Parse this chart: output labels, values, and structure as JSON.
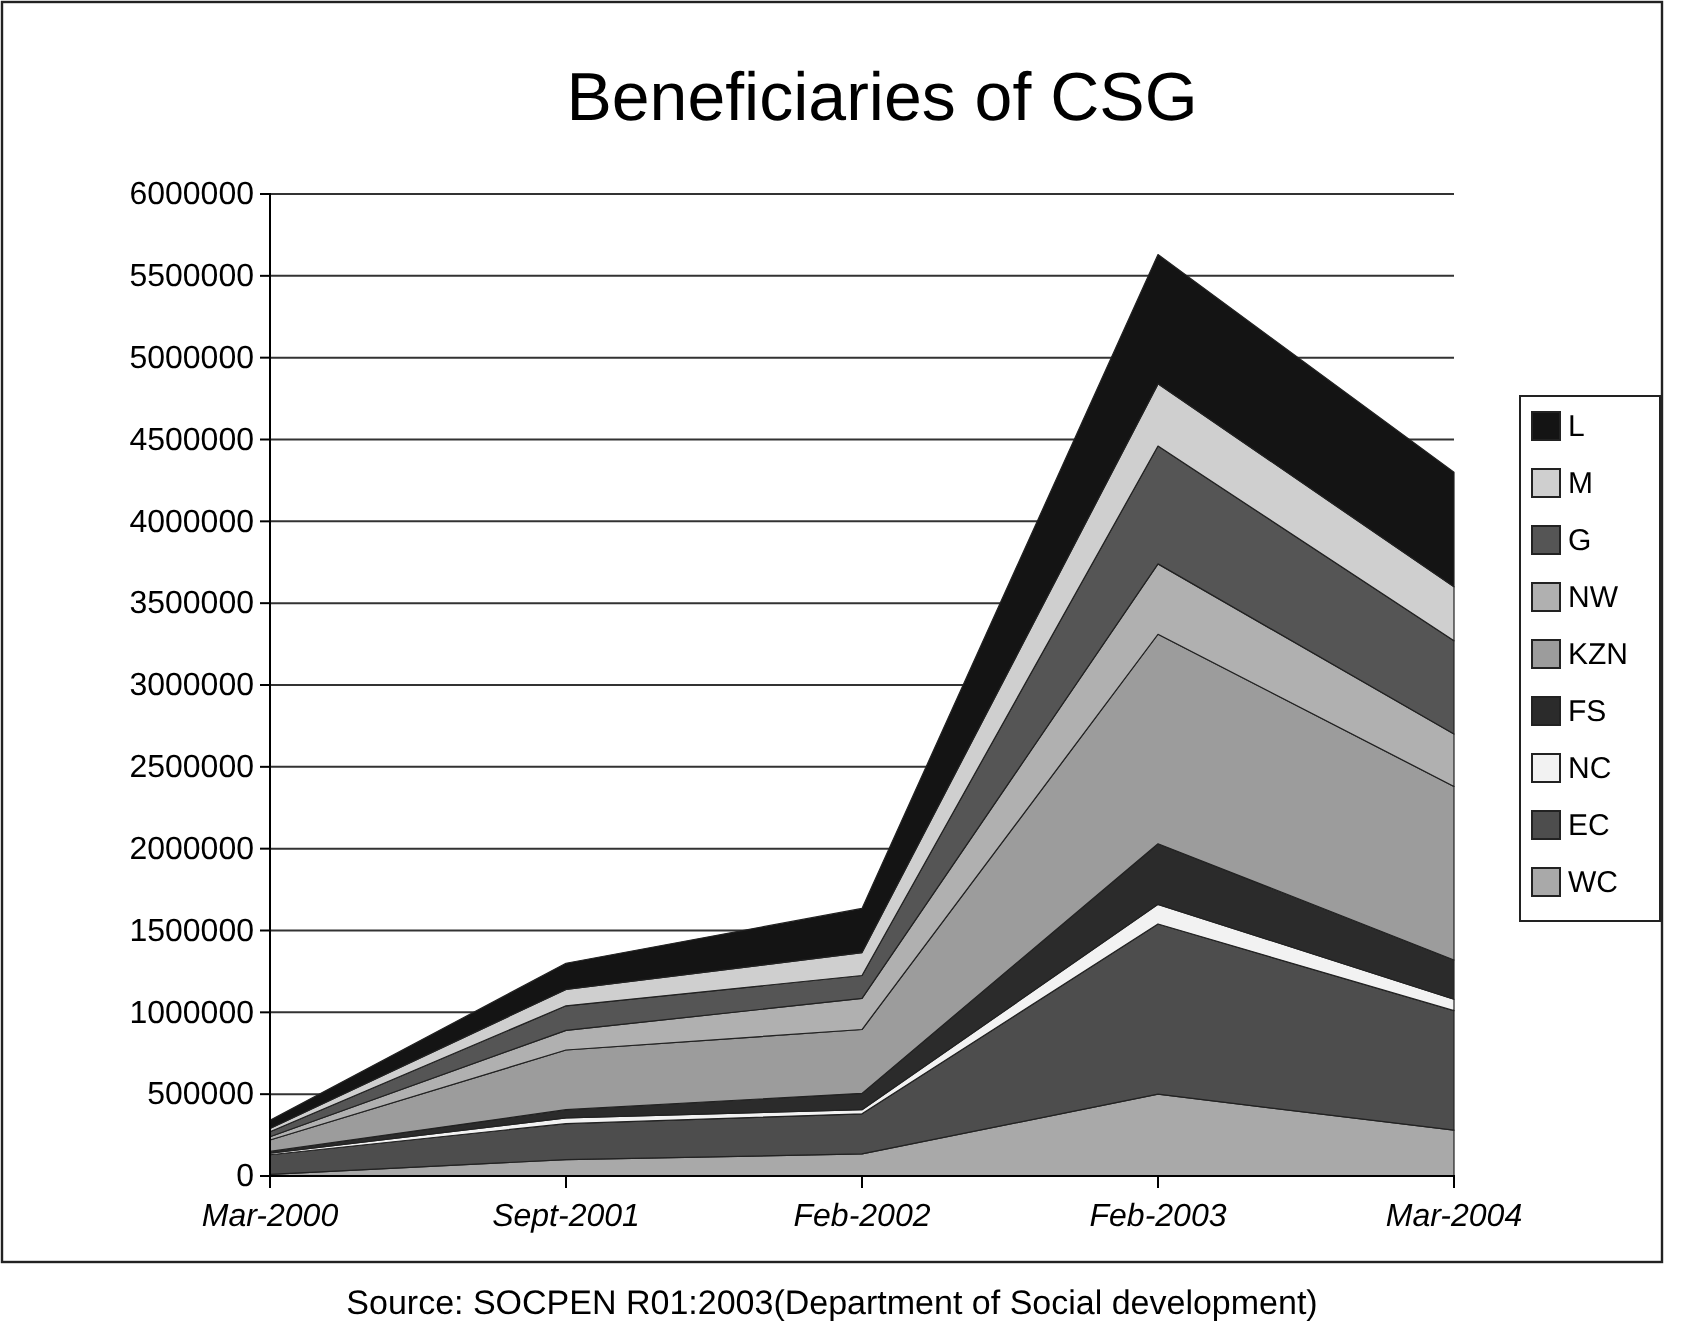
{
  "chart_data": {
    "type": "area",
    "stacked": true,
    "title": "Beneficiaries of CSG",
    "categories": [
      "Mar-2000",
      "Sept-2001",
      "Feb-2002",
      "Feb-2003",
      "Mar-2004"
    ],
    "series": [
      {
        "name": "WC",
        "color": "#a9a9a9",
        "values": [
          10000,
          100000,
          135000,
          500000,
          280000
        ]
      },
      {
        "name": "EC",
        "color": "#4d4d4d",
        "values": [
          120000,
          220000,
          245000,
          1040000,
          730000
        ]
      },
      {
        "name": "NC",
        "color": "#f2f2f2",
        "values": [
          10000,
          35000,
          25000,
          120000,
          70000
        ]
      },
      {
        "name": "FS",
        "color": "#2b2b2b",
        "values": [
          10000,
          50000,
          100000,
          370000,
          240000
        ]
      },
      {
        "name": "KZN",
        "color": "#9c9c9c",
        "values": [
          70000,
          365000,
          390000,
          1280000,
          1060000
        ]
      },
      {
        "name": "NW",
        "color": "#b0b0b0",
        "values": [
          20000,
          120000,
          190000,
          430000,
          320000
        ]
      },
      {
        "name": "G",
        "color": "#555555",
        "values": [
          30000,
          150000,
          140000,
          720000,
          570000
        ]
      },
      {
        "name": "M",
        "color": "#cfcfcf",
        "values": [
          20000,
          100000,
          140000,
          380000,
          330000
        ]
      },
      {
        "name": "L",
        "color": "#141414",
        "values": [
          50000,
          160000,
          270000,
          790000,
          700000
        ]
      }
    ],
    "ylim": [
      0,
      6000000
    ],
    "yticks": [
      0,
      500000,
      1000000,
      1500000,
      2000000,
      2500000,
      3000000,
      3500000,
      4000000,
      4500000,
      5000000,
      5500000,
      6000000
    ],
    "grid": "y",
    "legend": "right",
    "annotations": [
      "Source: SOCPEN R01:2003(Department of Social development)"
    ]
  }
}
